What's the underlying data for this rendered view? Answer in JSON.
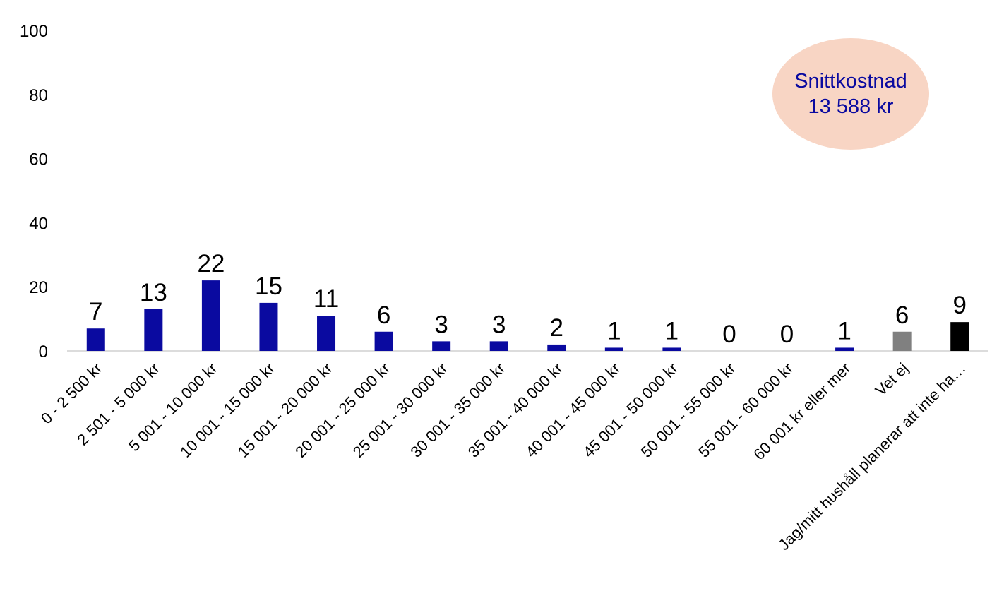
{
  "chart_data": {
    "type": "bar",
    "title": "",
    "xlabel": "",
    "ylabel": "",
    "ylim": [
      0,
      100
    ],
    "yticks": [
      "0",
      "20",
      "40",
      "60",
      "80",
      "100"
    ],
    "grid": false,
    "categories": [
      "0 - 2 500 kr",
      "2 501 - 5 000 kr",
      "5 001 - 10 000 kr",
      "10 001 - 15 000 kr",
      "15 001 - 20 000 kr",
      "20 001 - 25 000 kr",
      "25 001 - 30 000 kr",
      "30 001 - 35 000 kr",
      "35 001 - 40 000 kr",
      "40 001 - 45 000 kr",
      "45 001 - 50 000 kr",
      "50 001 - 55 000 kr",
      "55 001 - 60 000 kr",
      "60 001 kr eller mer",
      "Vet ej",
      "Jag/mitt hushåll planerar att inte ha…"
    ],
    "values": [
      7,
      13,
      22,
      15,
      11,
      6,
      3,
      3,
      2,
      1,
      1,
      0,
      0,
      1,
      6,
      9
    ],
    "bar_colors": [
      "#0a0aa0",
      "#0a0aa0",
      "#0a0aa0",
      "#0a0aa0",
      "#0a0aa0",
      "#0a0aa0",
      "#0a0aa0",
      "#0a0aa0",
      "#0a0aa0",
      "#0a0aa0",
      "#0a0aa0",
      "#0a0aa0",
      "#0a0aa0",
      "#0a0aa0",
      "#808080",
      "#000000"
    ],
    "data_labels": true,
    "annotation": {
      "line1": "Snittkostnad",
      "line2": "13 588 kr",
      "text_color": "#0a0aa0",
      "background": "#f8d5c4",
      "placement": "top-right"
    }
  }
}
